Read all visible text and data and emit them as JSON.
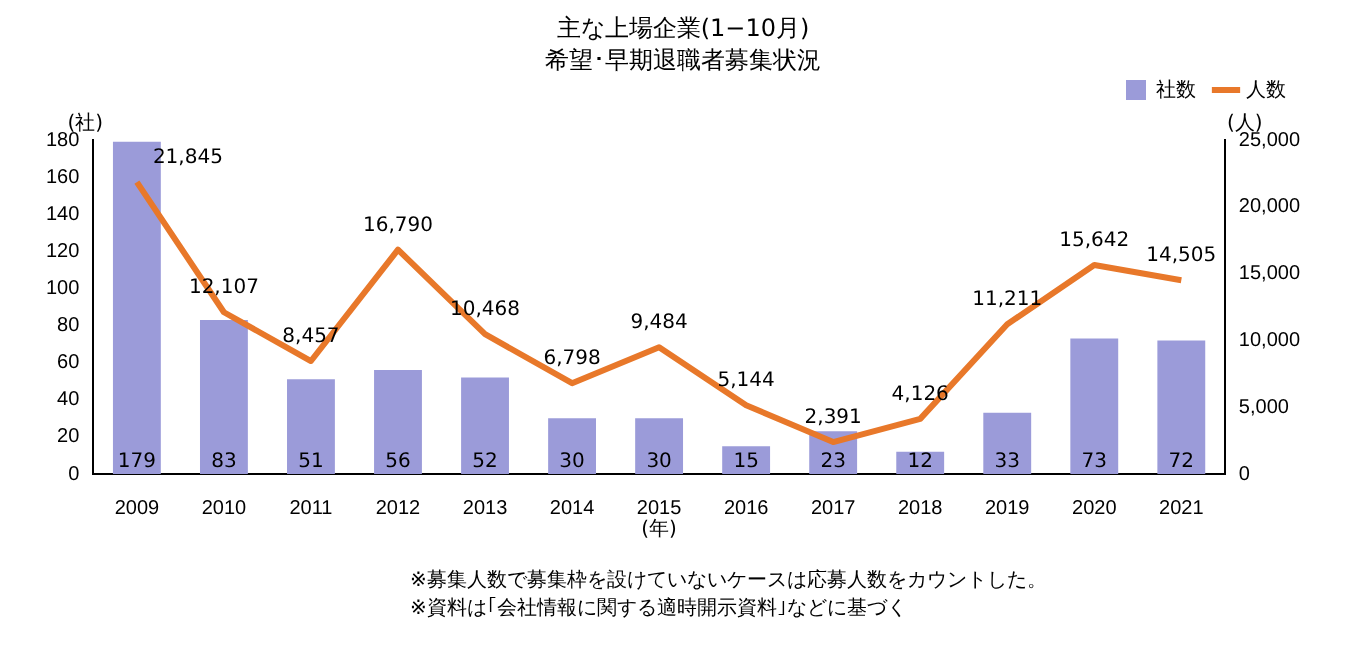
{
  "chart_data": {
    "type": "bar",
    "title": "主な上場企業(1−10月)",
    "subtitle": "希望･早期退職者募集状況",
    "xlabel": "(年)",
    "ylabel": "(社)",
    "y2label": "(人)",
    "annotations": [
      "※募集人数で募集枠を設けていないケースは応募人数をカウントした。",
      "※資料は｢会社情報に関する適時開示資料｣などに基づく"
    ],
    "categories": [
      "2009",
      "2010",
      "2011",
      "2012",
      "2013",
      "2014",
      "2015",
      "2016",
      "2017",
      "2018",
      "2019",
      "2020",
      "2021"
    ],
    "series": [
      {
        "name": "社数",
        "color": "#9b9bd9",
        "values": [
          179,
          83,
          51,
          56,
          52,
          30,
          30,
          15,
          23,
          12,
          33,
          73,
          72
        ]
      },
      {
        "name": "人数",
        "type": "line",
        "axis": "y2",
        "color": "#e8782a",
        "values": [
          21845,
          12107,
          8457,
          16790,
          10468,
          6798,
          9484,
          5144,
          2391,
          4126,
          11211,
          15642,
          14505
        ],
        "value_labels": [
          "21,845",
          "12,107",
          "8,457",
          "16,790",
          "10,468",
          "6,798",
          "9,484",
          "5,144",
          "2,391",
          "4,126",
          "11,211",
          "15,642",
          "14,505"
        ]
      }
    ],
    "ylim": [
      0,
      180
    ],
    "yticks": [
      0,
      20,
      40,
      60,
      80,
      100,
      120,
      140,
      160,
      180
    ],
    "y2lim": [
      0,
      25000
    ],
    "y2ticks": [
      {
        "value": 0,
        "label": "0"
      },
      {
        "value": 5000,
        "label": "5,000"
      },
      {
        "value": 10000,
        "label": "10,000"
      },
      {
        "value": 15000,
        "label": "15,000"
      },
      {
        "value": 20000,
        "label": "20,000"
      },
      {
        "value": 25000,
        "label": "25,000"
      }
    ],
    "data_labels": true,
    "legend": "top right",
    "marker": "none"
  }
}
